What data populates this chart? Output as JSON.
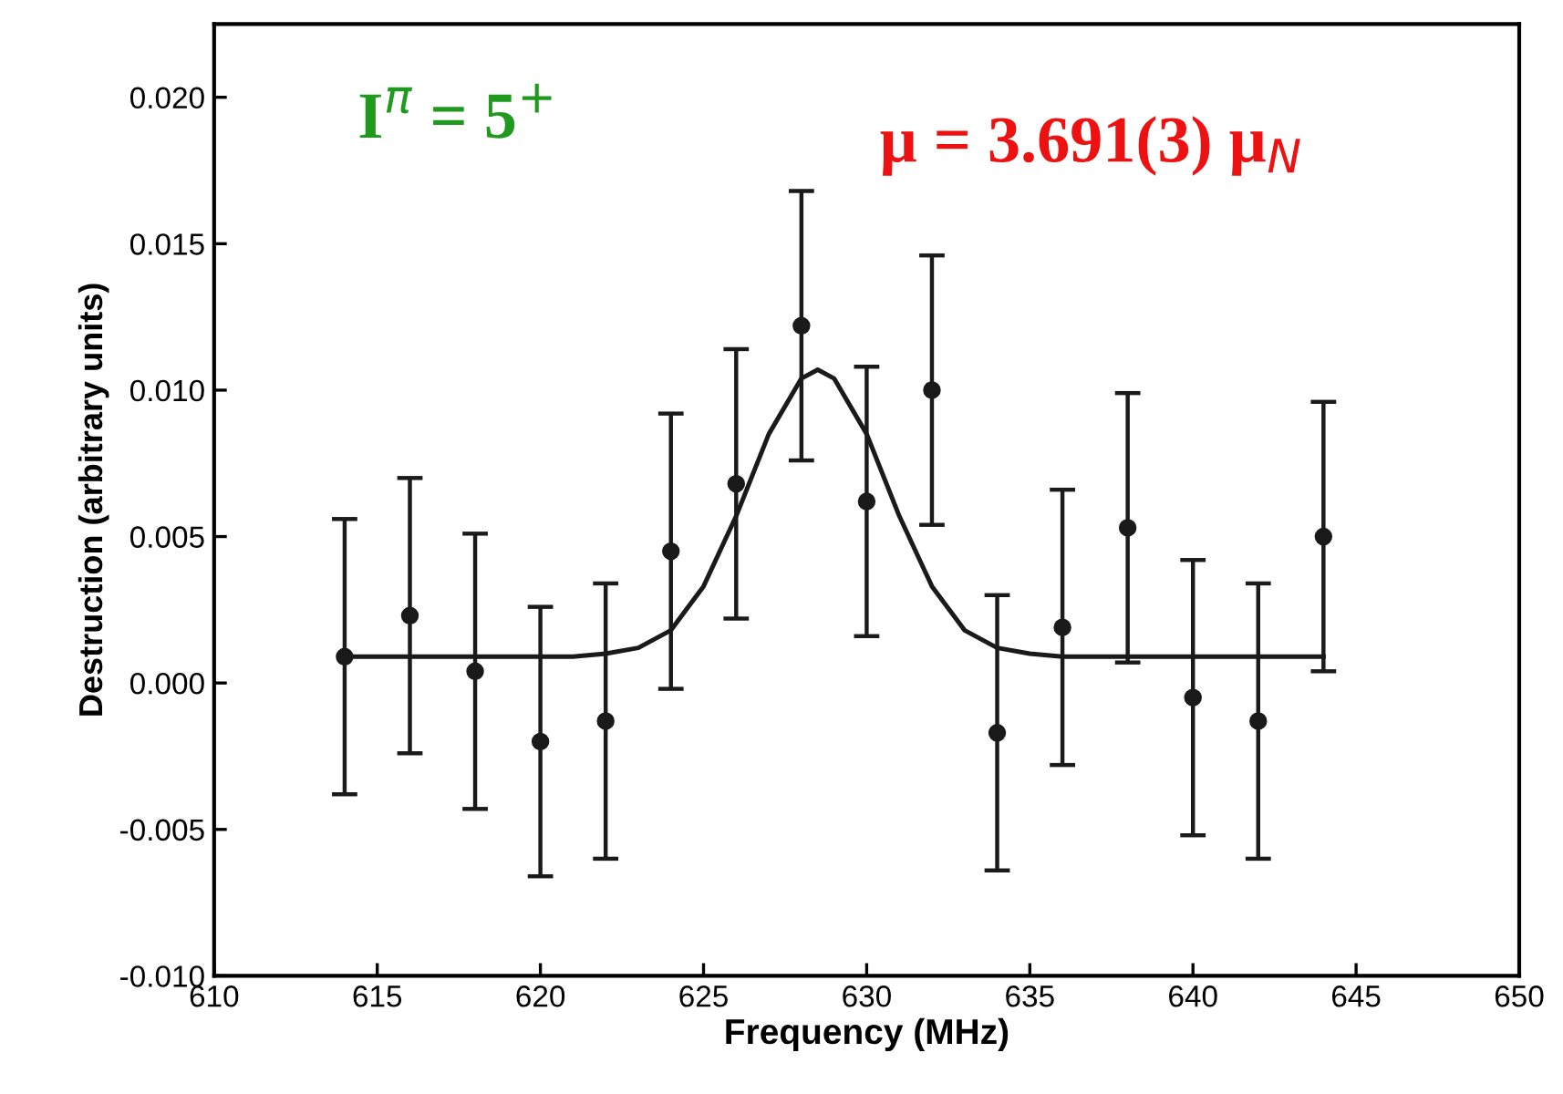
{
  "chart_data": {
    "type": "scatter",
    "xlabel": "Frequency (MHz)",
    "ylabel": "Destruction (arbitrary units)",
    "xlim": [
      610,
      650
    ],
    "xticks": [
      610,
      615,
      620,
      625,
      630,
      635,
      640,
      645,
      650
    ],
    "ylim": [
      -0.01,
      0.0225
    ],
    "yticks": [
      {
        "value": -0.01,
        "label": "-0.010"
      },
      {
        "value": -0.005,
        "label": "-0.005"
      },
      {
        "value": 0.0,
        "label": "0.000"
      },
      {
        "value": 0.005,
        "label": "0.005"
      },
      {
        "value": 0.01,
        "label": "0.010"
      },
      {
        "value": 0.015,
        "label": "0.015"
      },
      {
        "value": 0.02,
        "label": "0.020"
      }
    ],
    "grid": false,
    "legend": false,
    "annotations": [
      "I$^{π}$ = 5$^{+}$",
      "μ = 3.691(3) μ$_{N}$"
    ],
    "series": [
      {
        "color": "#1a1a1a",
        "marker": "circle",
        "x": [
          614,
          616,
          618,
          620,
          622,
          624,
          626,
          628,
          630,
          632,
          634,
          636,
          638,
          640,
          642,
          644
        ],
        "values": [
          0.0009,
          0.0023,
          0.0004,
          -0.002,
          -0.0013,
          0.0045,
          0.0068,
          0.0122,
          0.0062,
          0.01,
          -0.0017,
          0.0019,
          0.0053,
          -0.0005,
          -0.0013,
          0.005
        ],
        "errors": [
          0.0047,
          0.0047,
          0.0047,
          0.0046,
          0.0047,
          0.0047,
          0.0046,
          0.0046,
          0.0046,
          0.0046,
          0.0047,
          0.0047,
          0.0046,
          0.0047,
          0.0047,
          0.0046
        ]
      },
      {
        "type": "line",
        "color": "#1a1a1a",
        "marker": "none",
        "line_style": "solid",
        "x": [
          614,
          618,
          620,
          621,
          622,
          623,
          624,
          625,
          626,
          627,
          628,
          628.5,
          629,
          630,
          631,
          632,
          633,
          634,
          635,
          636,
          640,
          644
        ],
        "values": [
          0.0009,
          0.0009,
          0.0009,
          0.0009,
          0.001,
          0.0012,
          0.0018,
          0.0033,
          0.0057,
          0.0085,
          0.0104,
          0.0107,
          0.0104,
          0.0085,
          0.0057,
          0.0033,
          0.0018,
          0.0012,
          0.001,
          0.0009,
          0.0009,
          0.0009
        ]
      }
    ]
  }
}
